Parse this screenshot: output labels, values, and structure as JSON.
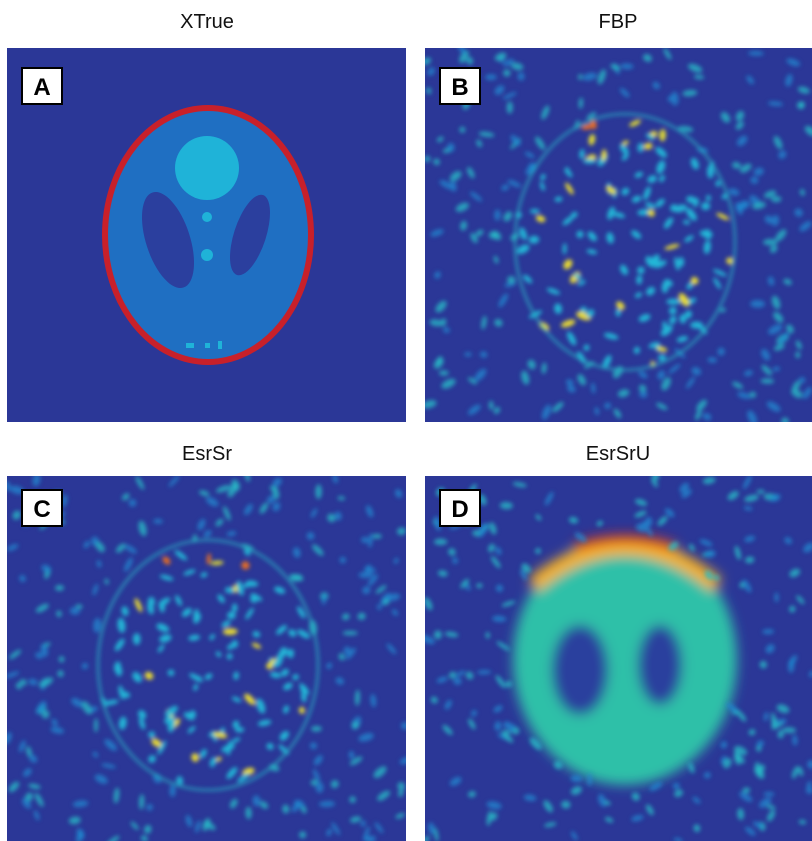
{
  "panels": [
    {
      "title": "XTrue",
      "label": "A"
    },
    {
      "title": "FBP",
      "label": "B"
    },
    {
      "title": "EsrSr",
      "label": "C"
    },
    {
      "title": "EsrSrU",
      "label": "D"
    }
  ]
}
